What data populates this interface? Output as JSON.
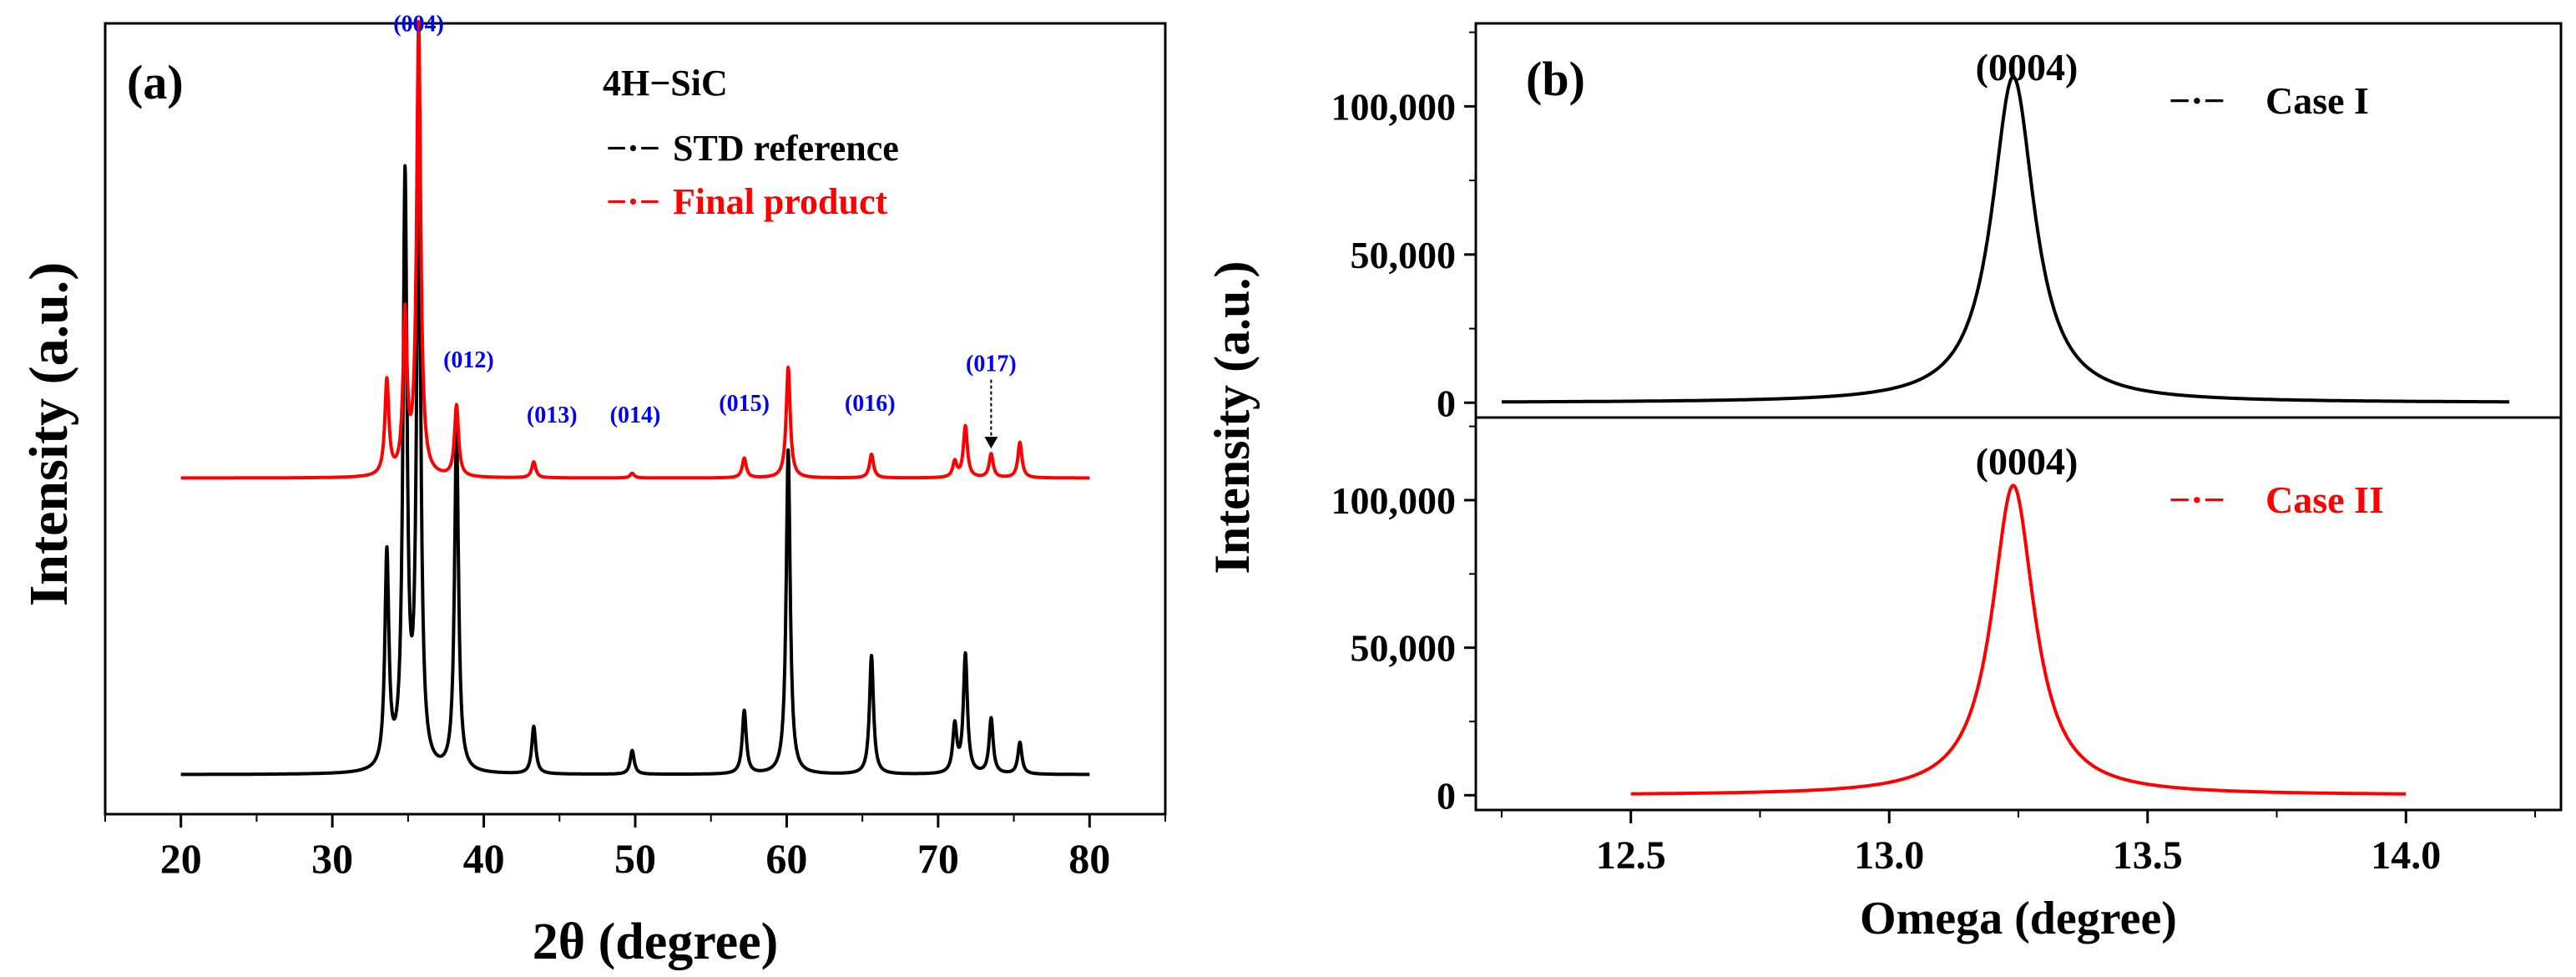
{
  "colors": {
    "black": "#000000",
    "red": "#ff0000",
    "blue": "#0000ff"
  },
  "chart_data": [
    {
      "type": "line",
      "panel_label": "(a)",
      "xlabel": "2θ (degree)",
      "ylabel": "Intensity (a.u.)",
      "xlim": [
        15,
        85
      ],
      "xticks": [
        20,
        30,
        40,
        50,
        60,
        70,
        80
      ],
      "xtick_labels": [
        "20",
        "30",
        "40",
        "50",
        "60",
        "70",
        "80"
      ],
      "ylim": [
        0,
        1
      ],
      "legend_title": "4H−SiC",
      "legend_symbol": "−·−",
      "series": [
        {
          "name": "STD reference",
          "color": "#000000",
          "offset": 0.05,
          "x_range": [
            20,
            80
          ],
          "peaks": [
            {
              "x": 33.6,
              "h": 0.27
            },
            {
              "x": 34.8,
              "h": 0.74
            },
            {
              "x": 35.7,
              "h": 0.79
            },
            {
              "x": 38.2,
              "h": 0.43
            },
            {
              "x": 43.3,
              "h": 0.06
            },
            {
              "x": 49.8,
              "h": 0.03
            },
            {
              "x": 57.2,
              "h": 0.08
            },
            {
              "x": 60.1,
              "h": 0.41
            },
            {
              "x": 65.6,
              "h": 0.15
            },
            {
              "x": 71.1,
              "h": 0.06
            },
            {
              "x": 71.8,
              "h": 0.15
            },
            {
              "x": 73.5,
              "h": 0.07
            },
            {
              "x": 75.4,
              "h": 0.04
            }
          ]
        },
        {
          "name": "Final product",
          "color": "#ff0000",
          "offset": 0.425,
          "x_range": [
            20,
            80
          ],
          "peaks": [
            {
              "x": 33.6,
              "h": 0.12
            },
            {
              "x": 34.8,
              "h": 0.2
            },
            {
              "x": 35.7,
              "h": 0.57
            },
            {
              "x": 38.2,
              "h": 0.09
            },
            {
              "x": 43.3,
              "h": 0.02
            },
            {
              "x": 49.8,
              "h": 0.006
            },
            {
              "x": 57.2,
              "h": 0.025
            },
            {
              "x": 60.1,
              "h": 0.14
            },
            {
              "x": 65.6,
              "h": 0.03
            },
            {
              "x": 71.1,
              "h": 0.02
            },
            {
              "x": 71.8,
              "h": 0.065
            },
            {
              "x": 73.5,
              "h": 0.03
            },
            {
              "x": 75.4,
              "h": 0.045
            }
          ]
        }
      ],
      "annotations": [
        {
          "text": "(004)",
          "x": 35.7,
          "y": 0.99
        },
        {
          "text": "(012)",
          "x": 39.0,
          "y": 0.565
        },
        {
          "text": "(013)",
          "x": 44.5,
          "y": 0.495
        },
        {
          "text": "(014)",
          "x": 50.0,
          "y": 0.495
        },
        {
          "text": "(015)",
          "x": 57.2,
          "y": 0.51
        },
        {
          "text": "(016)",
          "x": 65.5,
          "y": 0.51
        },
        {
          "text": "(017)",
          "x": 73.5,
          "y": 0.56
        }
      ]
    },
    {
      "type": "line",
      "panel_label": "(b)",
      "xlabel": "Omega (degree)",
      "ylabel": "Intensity (a.u.)",
      "xlim": [
        12.2,
        14.3
      ],
      "xticks": [
        12.5,
        13.0,
        13.5,
        14.0
      ],
      "xtick_labels": [
        "12.5",
        "13.0",
        "13.5",
        "14.0"
      ],
      "subplots": [
        {
          "series_name": "Case I",
          "legend_symbol": "−·−",
          "color": "#000000",
          "peak_label": "(0004)",
          "center": 13.24,
          "amplitude": 110000,
          "hwhm": 0.05,
          "x_range": [
            12.25,
            14.2
          ],
          "ylim": [
            -5000,
            128000
          ],
          "yticks": [
            0,
            50000,
            100000
          ],
          "ytick_labels": [
            "0",
            "50,000",
            "100,000"
          ]
        },
        {
          "series_name": "Case II",
          "legend_symbol": "−·−",
          "color": "#ff0000",
          "peak_label": "(0004)",
          "center": 13.24,
          "amplitude": 105000,
          "hwhm": 0.05,
          "x_range": [
            12.5,
            14.0
          ],
          "ylim": [
            -5000,
            128000
          ],
          "yticks": [
            0,
            50000,
            100000
          ],
          "ytick_labels": [
            "0",
            "50,000",
            "100,000"
          ]
        }
      ]
    }
  ]
}
